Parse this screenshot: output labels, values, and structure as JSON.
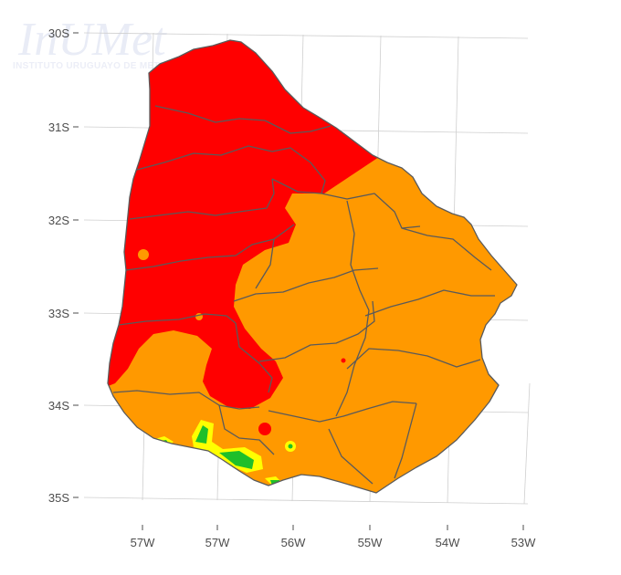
{
  "watermark": {
    "title": "InUMet",
    "subtitle": "INSTITUTO URUGUAYO DE METEOROLOGIA"
  },
  "axes": {
    "y_labels": [
      "30S",
      "31S",
      "32S",
      "33S",
      "34S",
      "35S"
    ],
    "x_labels": [
      "57W",
      "57W",
      "56W",
      "55W",
      "54W",
      "53W"
    ]
  },
  "map": {
    "region": "Uruguay",
    "category_colors": {
      "red": "#ff0000",
      "orange": "#ff9900",
      "yellow": "#ffff00",
      "green": "#1fbf2a"
    },
    "border_color": "#555555",
    "graticule_color": "#c8c8c8",
    "background": "#ffffff"
  }
}
